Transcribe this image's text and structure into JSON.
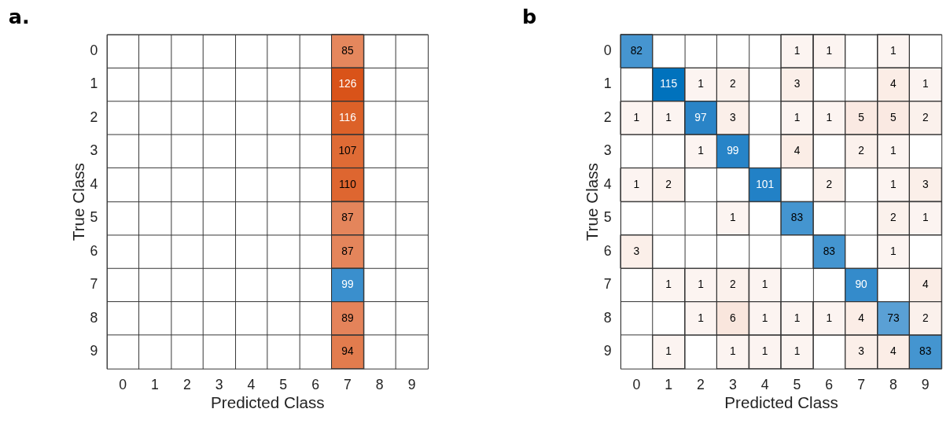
{
  "chart_data": [
    {
      "type": "heatmap",
      "title": "a.",
      "xlabel": "Predicted Class",
      "ylabel": "True Class",
      "categories": [
        "0",
        "1",
        "2",
        "3",
        "4",
        "5",
        "6",
        "7",
        "8",
        "9"
      ],
      "y_categories": [
        "0",
        "1",
        "2",
        "3",
        "4",
        "5",
        "6",
        "7",
        "8",
        "9"
      ],
      "data_labels": true,
      "cells": [
        [
          null,
          null,
          null,
          null,
          null,
          null,
          null,
          85,
          null,
          null
        ],
        [
          null,
          null,
          null,
          null,
          null,
          null,
          null,
          126,
          null,
          null
        ],
        [
          null,
          null,
          null,
          null,
          null,
          null,
          null,
          116,
          null,
          null
        ],
        [
          null,
          null,
          null,
          null,
          null,
          null,
          null,
          107,
          null,
          null
        ],
        [
          null,
          null,
          null,
          null,
          null,
          null,
          null,
          110,
          null,
          null
        ],
        [
          null,
          null,
          null,
          null,
          null,
          null,
          null,
          87,
          null,
          null
        ],
        [
          null,
          null,
          null,
          null,
          null,
          null,
          null,
          87,
          null,
          null
        ],
        [
          null,
          null,
          null,
          null,
          null,
          null,
          null,
          99,
          null,
          null
        ],
        [
          null,
          null,
          null,
          null,
          null,
          null,
          null,
          89,
          null,
          null
        ],
        [
          null,
          null,
          null,
          null,
          null,
          null,
          null,
          94,
          null,
          null
        ]
      ],
      "colors": [
        [
          null,
          null,
          null,
          null,
          null,
          null,
          null,
          "#e5875d",
          null,
          null
        ],
        [
          null,
          null,
          null,
          null,
          null,
          null,
          null,
          "#d95319",
          null,
          null
        ],
        [
          null,
          null,
          null,
          null,
          null,
          null,
          null,
          "#dc6128",
          null,
          null
        ],
        [
          null,
          null,
          null,
          null,
          null,
          null,
          null,
          "#df6b35",
          null,
          null
        ],
        [
          null,
          null,
          null,
          null,
          null,
          null,
          null,
          "#de6630",
          null,
          null
        ],
        [
          null,
          null,
          null,
          null,
          null,
          null,
          null,
          "#e4855b",
          null,
          null
        ],
        [
          null,
          null,
          null,
          null,
          null,
          null,
          null,
          "#e4855b",
          null,
          null
        ],
        [
          null,
          null,
          null,
          null,
          null,
          null,
          null,
          "#3a8fcd",
          null,
          null
        ],
        [
          null,
          null,
          null,
          null,
          null,
          null,
          null,
          "#e4835a",
          null,
          null
        ],
        [
          null,
          null,
          null,
          null,
          null,
          null,
          null,
          "#e27c4e",
          null,
          null
        ]
      ]
    },
    {
      "type": "heatmap",
      "title": "b",
      "xlabel": "Predicted Class",
      "ylabel": "True Class",
      "categories": [
        "0",
        "1",
        "2",
        "3",
        "4",
        "5",
        "6",
        "7",
        "8",
        "9"
      ],
      "y_categories": [
        "0",
        "1",
        "2",
        "3",
        "4",
        "5",
        "6",
        "7",
        "8",
        "9"
      ],
      "data_labels": true,
      "cells": [
        [
          82,
          null,
          null,
          null,
          null,
          1,
          1,
          null,
          1,
          null
        ],
        [
          null,
          115,
          1,
          2,
          null,
          3,
          null,
          null,
          4,
          1
        ],
        [
          1,
          1,
          97,
          3,
          null,
          1,
          1,
          5,
          5,
          2
        ],
        [
          null,
          null,
          1,
          99,
          null,
          4,
          null,
          2,
          1,
          null
        ],
        [
          1,
          2,
          null,
          null,
          101,
          null,
          2,
          null,
          1,
          3
        ],
        [
          null,
          null,
          null,
          1,
          null,
          83,
          null,
          null,
          2,
          1
        ],
        [
          3,
          null,
          null,
          null,
          null,
          null,
          83,
          null,
          1,
          null
        ],
        [
          null,
          1,
          1,
          2,
          1,
          null,
          null,
          90,
          null,
          4
        ],
        [
          null,
          null,
          1,
          6,
          1,
          1,
          1,
          4,
          73,
          2
        ],
        [
          null,
          1,
          null,
          1,
          1,
          1,
          null,
          3,
          4,
          83
        ]
      ],
      "colors": [
        [
          "#4695d0",
          null,
          null,
          null,
          null,
          "#fcf4f1",
          "#fcf4f1",
          null,
          "#fcf4f1",
          null
        ],
        [
          null,
          "#0072bd",
          "#fcf4f1",
          "#fbf1ec",
          null,
          "#fbefe9",
          null,
          null,
          "#fbede6",
          "#fcf4f1"
        ],
        [
          "#fcf4f1",
          "#fcf4f1",
          "#2a84c7",
          "#fbefe9",
          null,
          "#fcf4f1",
          "#fcf4f1",
          "#fae9e2",
          "#fae9e2",
          "#fbf1ec"
        ],
        [
          null,
          null,
          "#fcf4f1",
          "#2784c8",
          null,
          "#fbede6",
          null,
          "#fbf1ec",
          "#fcf4f1",
          null
        ],
        [
          "#fcf4f1",
          "#fbf1ec",
          null,
          null,
          "#2281c6",
          null,
          "#fbf1ec",
          null,
          "#fcf4f1",
          "#fbefe9"
        ],
        [
          null,
          null,
          null,
          "#fcf4f1",
          null,
          "#4495d0",
          null,
          null,
          "#fbf1ec",
          "#fcf4f1"
        ],
        [
          "#fbefe9",
          null,
          null,
          null,
          null,
          null,
          "#4495d0",
          null,
          "#fcf4f1",
          null
        ],
        [
          null,
          "#fcf4f1",
          "#fcf4f1",
          "#fbf1ec",
          "#fcf4f1",
          null,
          null,
          "#348bcb",
          null,
          "#fbede6"
        ],
        [
          null,
          null,
          "#fcf4f1",
          "#f9e6dd",
          "#fcf4f1",
          "#fcf4f1",
          "#fcf4f1",
          "#fbede6",
          "#5aa0d5",
          "#fbf1ec"
        ],
        [
          null,
          "#fcf4f1",
          null,
          "#fcf4f1",
          "#fcf4f1",
          "#fcf4f1",
          null,
          "#fbefe9",
          "#fbede6",
          "#4495d0"
        ]
      ]
    }
  ]
}
